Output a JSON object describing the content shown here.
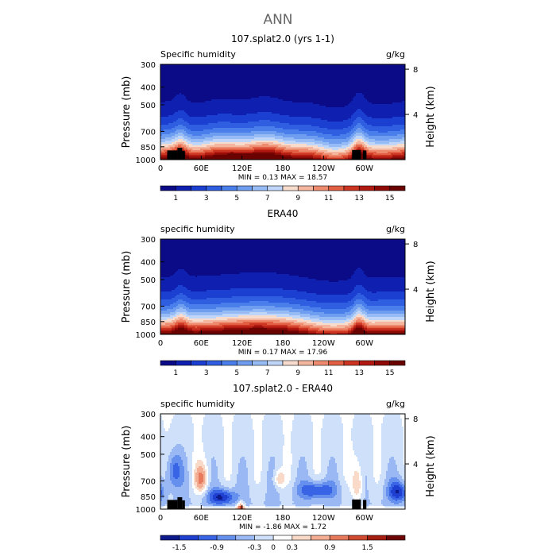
{
  "figure_title": "ANN",
  "colors": {
    "frame": "#000000",
    "land": "#000000",
    "sequential": [
      "#0b0b88",
      "#0f1fb0",
      "#1b3fd0",
      "#2f5ee0",
      "#4a7eea",
      "#6f9df0",
      "#97bbf4",
      "#c0d6f8",
      "#f7dccd",
      "#f4b69e",
      "#ee8b6e",
      "#e25f44",
      "#cc3522",
      "#b01a10",
      "#8e0a06",
      "#6a0202"
    ],
    "diverging": [
      "#0d1a8c",
      "#1e3fd0",
      "#3a64e6",
      "#6690ee",
      "#9ab8f4",
      "#cfe0fa",
      "#ffffff",
      "#f9d9c8",
      "#f3ad93",
      "#e77a5d",
      "#cf4a31",
      "#a51e12",
      "#6e0606"
    ]
  },
  "chart_data": [
    {
      "type": "heatmap",
      "title": "107.splat2.0 (yrs 1-1)",
      "left_label": "Specific humidity",
      "right_label": "g/kg",
      "ylabel": "Pressure (mb)",
      "y2label": "Height (km)",
      "xticks": [
        "0",
        "60E",
        "120E",
        "180",
        "120W",
        "60W"
      ],
      "xtick_lon": [
        0,
        60,
        120,
        180,
        240,
        300
      ],
      "xlim": [
        0,
        360
      ],
      "yticks": [
        "300",
        "400",
        "500",
        "700",
        "850",
        "1000"
      ],
      "ytick_p": [
        300,
        400,
        500,
        700,
        850,
        1000
      ],
      "ylim": [
        300,
        1000
      ],
      "y2ticks": [
        "8",
        "4"
      ],
      "y2tick_km": [
        8,
        4
      ],
      "stats": "MIN =     0.13   MAX =   18.57",
      "colorbar_labels": [
        "1",
        "3",
        "5",
        "7",
        "9",
        "11",
        "13",
        "15"
      ],
      "palette": "sequential",
      "field": "q_model"
    },
    {
      "type": "heatmap",
      "title": "ERA40",
      "left_label": "specific humidity",
      "right_label": "g/kg",
      "ylabel": "Pressure (mb)",
      "y2label": "Height (km)",
      "xticks": [
        "0",
        "60E",
        "120E",
        "180",
        "120W",
        "60W"
      ],
      "xtick_lon": [
        0,
        60,
        120,
        180,
        240,
        300
      ],
      "xlim": [
        0,
        360
      ],
      "yticks": [
        "300",
        "400",
        "500",
        "700",
        "850",
        "1000"
      ],
      "ytick_p": [
        300,
        400,
        500,
        700,
        850,
        1000
      ],
      "ylim": [
        300,
        1000
      ],
      "y2ticks": [
        "8",
        "4"
      ],
      "y2tick_km": [
        8,
        4
      ],
      "stats": "MIN =     0.17   MAX =   17.96",
      "colorbar_labels": [
        "1",
        "3",
        "5",
        "7",
        "9",
        "11",
        "13",
        "15"
      ],
      "palette": "sequential",
      "field": "q_obs"
    },
    {
      "type": "heatmap",
      "title": "107.splat2.0 - ERA40",
      "left_label": "specific humidity",
      "right_label": "g/kg",
      "ylabel": "Pressure (mb)",
      "y2label": "Height (km)",
      "xticks": [
        "0",
        "60E",
        "120E",
        "180",
        "120W",
        "60W"
      ],
      "xtick_lon": [
        0,
        60,
        120,
        180,
        240,
        300
      ],
      "xlim": [
        0,
        360
      ],
      "yticks": [
        "300",
        "400",
        "500",
        "700",
        "850",
        "1000"
      ],
      "ytick_p": [
        300,
        400,
        500,
        700,
        850,
        1000
      ],
      "ylim": [
        300,
        1000
      ],
      "y2ticks": [
        "8",
        "4"
      ],
      "y2tick_km": [
        8,
        4
      ],
      "stats": "MIN =   -1.86   MAX =     1.72",
      "colorbar_labels": [
        "-1.5",
        "-0.9",
        "-0.3",
        "0",
        "0.3",
        "0.9",
        "1.5"
      ],
      "palette": "diverging",
      "field": "q_diff"
    }
  ]
}
